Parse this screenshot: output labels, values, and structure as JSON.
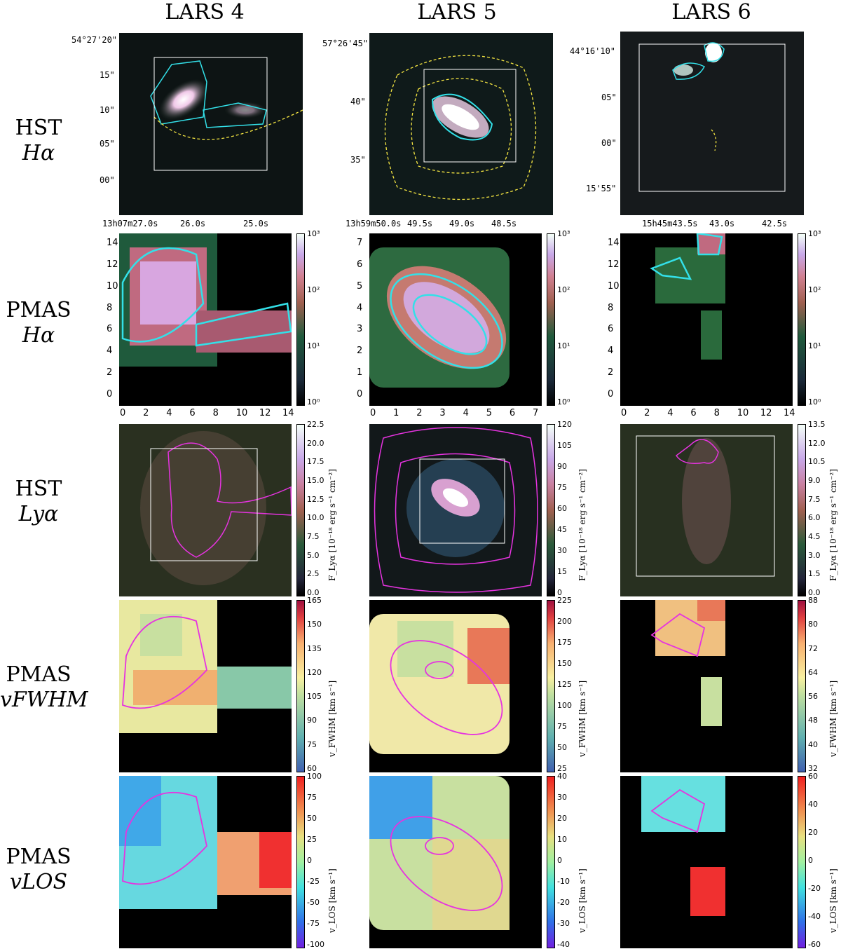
{
  "columns": [
    {
      "title": "LARS 4",
      "hst_ra": [
        "13h07m27.0s",
        "26.0s",
        "25.0s"
      ],
      "hst_dec": [
        "54°27'20\"",
        "15\"",
        "10\"",
        "05\"",
        "00\""
      ],
      "pmas_x": [
        "0",
        "2",
        "4",
        "6",
        "8",
        "10",
        "12",
        "14"
      ],
      "pmas_y": [
        "14",
        "12",
        "10",
        "8",
        "6",
        "4",
        "2",
        "0"
      ],
      "cb_ha": [
        "10³",
        "10²",
        "10¹",
        "10⁰"
      ],
      "cb_lya": [
        "22.5",
        "20.0",
        "17.5",
        "15.0",
        "12.5",
        "10.0",
        "7.5",
        "5.0",
        "2.5",
        "0.0"
      ],
      "cb_fwhm": [
        "165",
        "150",
        "135",
        "120",
        "105",
        "90",
        "75",
        "60"
      ],
      "cb_los": [
        "100",
        "75",
        "50",
        "25",
        "0",
        "-25",
        "-50",
        "-75",
        "-100"
      ]
    },
    {
      "title": "LARS 5",
      "hst_ra": [
        "13h59m50.0s",
        "49.5s",
        "49.0s",
        "48.5s"
      ],
      "hst_dec": [
        "57°26'45\"",
        "40\"",
        "35\""
      ],
      "pmas_x": [
        "0",
        "1",
        "2",
        "3",
        "4",
        "5",
        "6",
        "7"
      ],
      "pmas_y": [
        "7",
        "6",
        "5",
        "4",
        "3",
        "2",
        "1",
        "0"
      ],
      "cb_ha": [
        "10³",
        "10²",
        "10¹",
        "10⁰"
      ],
      "cb_lya": [
        "120",
        "105",
        "90",
        "75",
        "60",
        "45",
        "30",
        "15",
        "0"
      ],
      "cb_fwhm": [
        "225",
        "200",
        "175",
        "150",
        "125",
        "100",
        "75",
        "50",
        "25"
      ],
      "cb_los": [
        "40",
        "30",
        "20",
        "10",
        "0",
        "-10",
        "-20",
        "-30",
        "-40"
      ]
    },
    {
      "title": "LARS 6",
      "hst_ra": [
        "15h45m43.5s",
        "43.0s",
        "42.5s"
      ],
      "hst_dec": [
        "44°16'10\"",
        "05\"",
        "00\"",
        "15'55\""
      ],
      "pmas_x": [
        "0",
        "2",
        "4",
        "6",
        "8",
        "10",
        "12",
        "14"
      ],
      "pmas_y": [
        "14",
        "12",
        "10",
        "8",
        "6",
        "4",
        "2",
        "0"
      ],
      "cb_ha": [
        "10³",
        "10²",
        "10¹",
        "10⁰"
      ],
      "cb_lya": [
        "13.5",
        "12.0",
        "10.5",
        "9.0",
        "7.5",
        "6.0",
        "4.5",
        "3.0",
        "1.5",
        "0.0"
      ],
      "cb_fwhm": [
        "88",
        "80",
        "72",
        "64",
        "56",
        "48",
        "40",
        "32"
      ],
      "cb_los": [
        "60",
        "40",
        "20",
        "0",
        "-20",
        "-40",
        "-60"
      ]
    }
  ],
  "rows": [
    {
      "line1": "HST",
      "line2": "Hα"
    },
    {
      "line1": "PMAS",
      "line2": "Hα"
    },
    {
      "line1": "HST",
      "line2": "Lyα"
    },
    {
      "line1": "PMAS",
      "line2": "vFWHM"
    },
    {
      "line1": "PMAS",
      "line2": "vLOS"
    }
  ],
  "cb_labels": {
    "lya": "F_Lyα [10⁻¹⁸ erg s⁻¹ cm⁻²]",
    "fwhm": "v_FWHM [km s⁻¹]",
    "los": "v_LOS [km s⁻¹]"
  },
  "colors": {
    "cyan": "#33e0e8",
    "yellow": "#f5e642",
    "magenta": "#e633e0",
    "frame": "#ffffff"
  }
}
